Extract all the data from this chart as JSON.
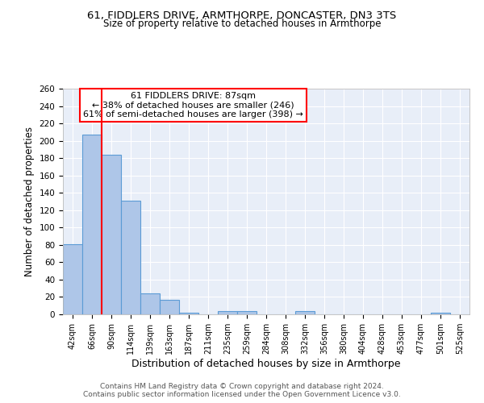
{
  "title": "61, FIDDLERS DRIVE, ARMTHORPE, DONCASTER, DN3 3TS",
  "subtitle": "Size of property relative to detached houses in Armthorpe",
  "xlabel": "Distribution of detached houses by size in Armthorpe",
  "ylabel": "Number of detached properties",
  "footnote1": "Contains HM Land Registry data © Crown copyright and database right 2024.",
  "footnote2": "Contains public sector information licensed under the Open Government Licence v3.0.",
  "bar_labels": [
    "42sqm",
    "66sqm",
    "90sqm",
    "114sqm",
    "139sqm",
    "163sqm",
    "187sqm",
    "211sqm",
    "235sqm",
    "259sqm",
    "284sqm",
    "308sqm",
    "332sqm",
    "356sqm",
    "380sqm",
    "404sqm",
    "428sqm",
    "453sqm",
    "477sqm",
    "501sqm",
    "525sqm"
  ],
  "bar_values": [
    81,
    207,
    184,
    131,
    24,
    17,
    2,
    0,
    4,
    4,
    0,
    0,
    4,
    0,
    0,
    0,
    0,
    0,
    0,
    2,
    0
  ],
  "bar_color": "#aec6e8",
  "bar_edge_color": "#5b9bd5",
  "background_color": "#e8eef8",
  "grid_color": "white",
  "vline_x": 1.5,
  "vline_color": "red",
  "annotation_text": "61 FIDDLERS DRIVE: 87sqm\n← 38% of detached houses are smaller (246)\n61% of semi-detached houses are larger (398) →",
  "annotation_box_color": "white",
  "annotation_box_edge": "red",
  "ylim": [
    0,
    260
  ],
  "yticks": [
    0,
    20,
    40,
    60,
    80,
    100,
    120,
    140,
    160,
    180,
    200,
    220,
    240,
    260
  ]
}
